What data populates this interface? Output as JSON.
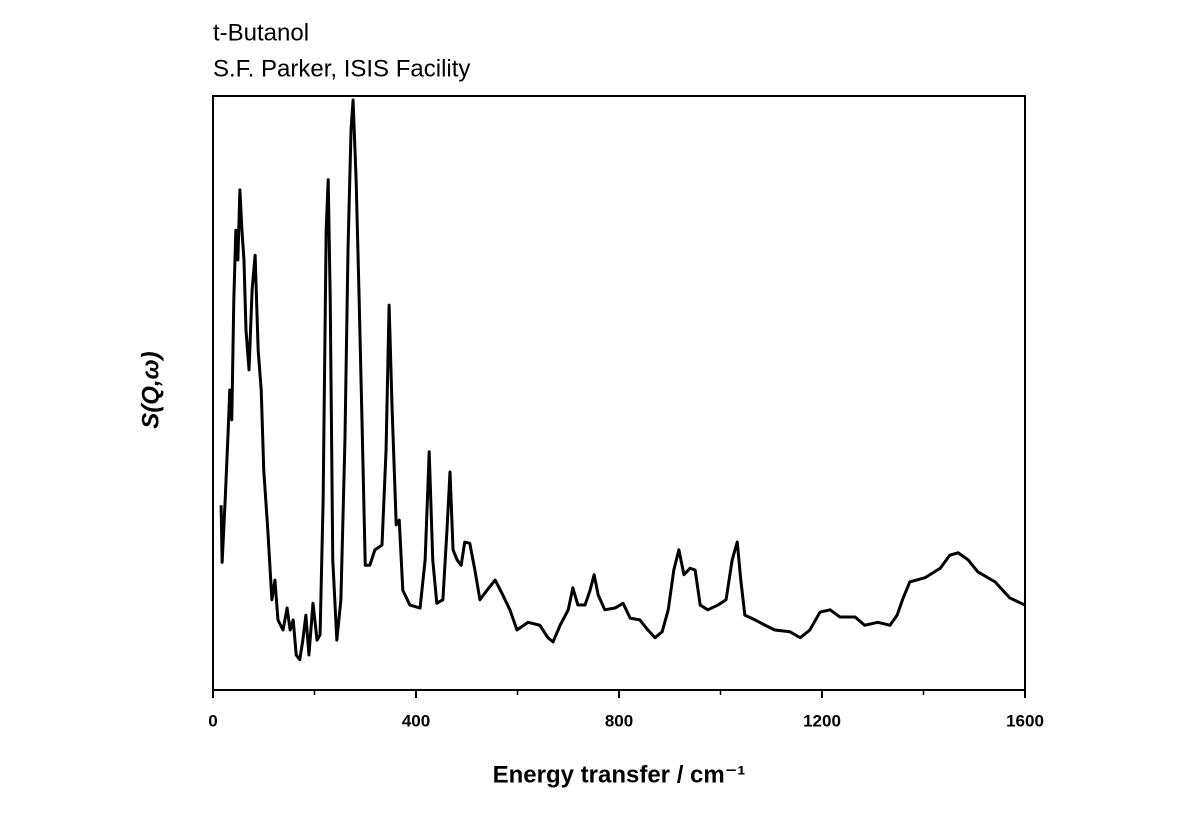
{
  "chart_data": {
    "type": "line",
    "title": "t-Butanol",
    "subtitle": "S.F. Parker, ISIS Facility",
    "xlabel": "Energy transfer / cm⁻¹",
    "ylabel": "S(Q,ω)",
    "xlim": [
      0,
      1600
    ],
    "xticks": [
      0,
      400,
      800,
      1200,
      1600
    ],
    "xminorticks": [
      200,
      600,
      1000,
      1400
    ],
    "ylim": [
      0,
      100
    ],
    "color": "#000000",
    "x": [
      16,
      18,
      24,
      30,
      33,
      37,
      41,
      45,
      49,
      53,
      57,
      61,
      65,
      71,
      77,
      83,
      89,
      95,
      100,
      108,
      116,
      122,
      128,
      138,
      146,
      152,
      158,
      164,
      171,
      177,
      183,
      189,
      197,
      205,
      211,
      217,
      223,
      227,
      231,
      236,
      244,
      252,
      260,
      266,
      272,
      276,
      282,
      288,
      294,
      300,
      309,
      319,
      333,
      341,
      347,
      353,
      361,
      367,
      374,
      388,
      408,
      418,
      426,
      433,
      441,
      453,
      461,
      467,
      473,
      481,
      489,
      496,
      506,
      516,
      526,
      540,
      556,
      571,
      585,
      599,
      621,
      644,
      660,
      670,
      684,
      700,
      709,
      719,
      733,
      743,
      751,
      759,
      772,
      792,
      808,
      822,
      841,
      857,
      871,
      885,
      897,
      908,
      918,
      928,
      940,
      950,
      960,
      975,
      995,
      1011,
      1023,
      1033,
      1040,
      1048,
      1068,
      1088,
      1107,
      1137,
      1157,
      1176,
      1196,
      1216,
      1235,
      1265,
      1284,
      1310,
      1334,
      1348,
      1360,
      1373,
      1403,
      1433,
      1452,
      1468,
      1488,
      1507,
      1541,
      1570,
      1600
    ],
    "values": [
      31.1,
      21.5,
      32,
      43.8,
      50.5,
      45.5,
      65.7,
      77.4,
      72.4,
      84.2,
      77.4,
      72.4,
      60.6,
      53.9,
      67.3,
      73.2,
      57.2,
      50.5,
      37,
      26.9,
      15.2,
      18.5,
      11.8,
      10.1,
      13.8,
      10.1,
      11.8,
      5.9,
      5.1,
      8.4,
      12.6,
      5.9,
      14.6,
      8.4,
      9.3,
      32,
      77.4,
      85.9,
      65.7,
      21.9,
      8.4,
      15.2,
      42.1,
      74.1,
      94.3,
      99.3,
      85.9,
      65.7,
      43.8,
      21,
      21,
      23.6,
      24.4,
      40.4,
      64.8,
      47.1,
      27.8,
      28.6,
      16.8,
      14.3,
      13.8,
      21.9,
      40.1,
      21.9,
      14.6,
      15.2,
      26.9,
      36.7,
      23.6,
      21.9,
      21,
      24.9,
      24.7,
      20.2,
      15.2,
      16.8,
      18.5,
      16,
      13.5,
      10.1,
      11.4,
      10.9,
      8.8,
      8.1,
      10.9,
      13.5,
      17.2,
      14.3,
      14.3,
      16.8,
      19.4,
      16,
      13.5,
      13.8,
      14.6,
      12.1,
      11.8,
      10.1,
      8.8,
      9.8,
      13.5,
      20.2,
      23.6,
      19.4,
      20.5,
      20.2,
      14.3,
      13.5,
      14.3,
      15.2,
      21.9,
      24.9,
      18.5,
      12.6,
      11.8,
      10.9,
      10.1,
      9.8,
      8.8,
      10.1,
      13.1,
      13.5,
      12.3,
      12.3,
      10.9,
      11.4,
      10.9,
      12.6,
      15.5,
      18.2,
      18.9,
      20.5,
      22.7,
      23.1,
      21.9,
      19.9,
      18.2,
      15.5,
      14.3
    ]
  }
}
